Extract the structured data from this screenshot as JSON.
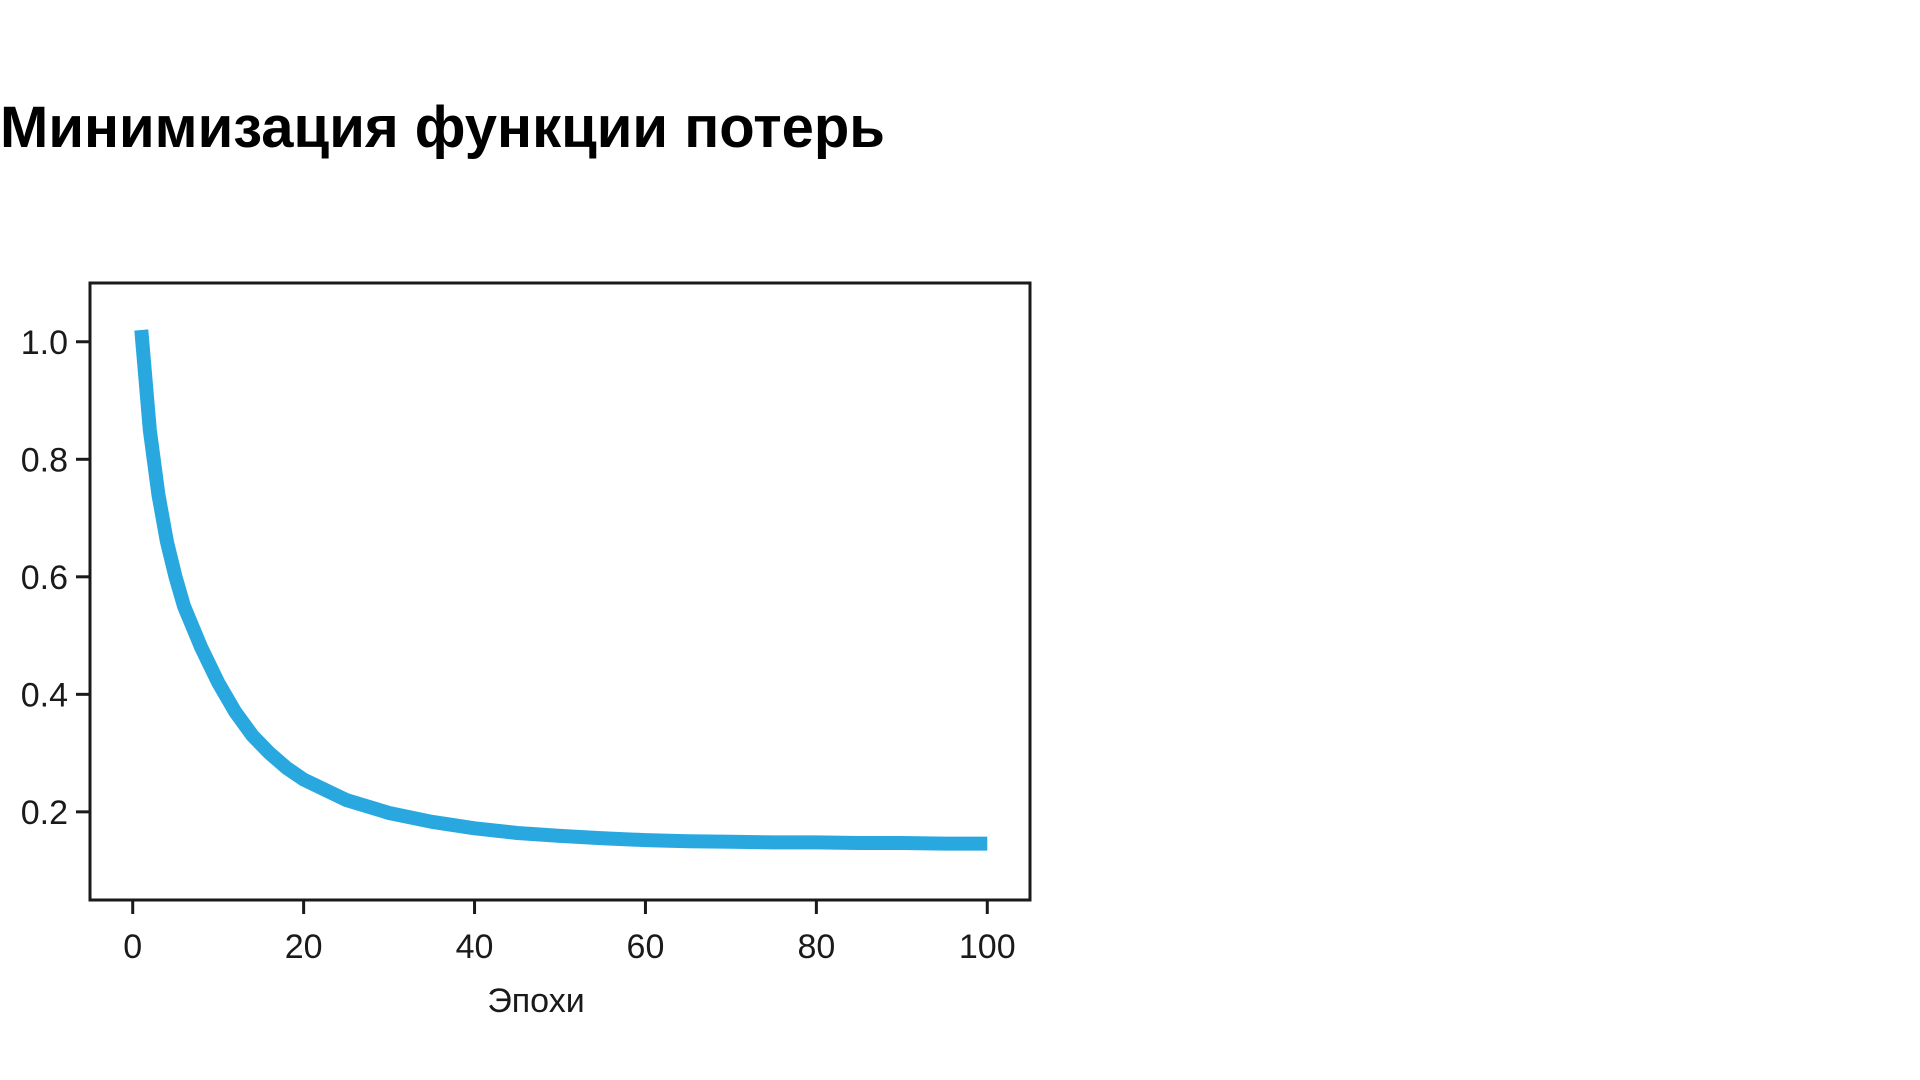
{
  "slide": {
    "title": "Минимизация функции потерь"
  },
  "colors": {
    "line": "#29a8e0",
    "axis": "#1a1a1a",
    "background": "#ffffff"
  },
  "chart_data": {
    "type": "line",
    "title": "",
    "xlabel": "Эпохи",
    "ylabel": "",
    "xlim": [
      -5,
      105
    ],
    "ylim": [
      0.05,
      1.1
    ],
    "xticks": [
      0,
      20,
      40,
      60,
      80,
      100
    ],
    "xtick_labels": [
      "0",
      "20",
      "40",
      "60",
      "80",
      "100"
    ],
    "yticks": [
      0.2,
      0.4,
      0.6,
      0.8,
      1.0
    ],
    "ytick_labels": [
      "0.2",
      "0.4",
      "0.6",
      "0.8",
      "1.0"
    ],
    "grid": false,
    "legend": "none",
    "series": [
      {
        "x": [
          1,
          2,
          3,
          4,
          5,
          6,
          8,
          10,
          12,
          14,
          16,
          18,
          20,
          25,
          30,
          35,
          40,
          45,
          50,
          55,
          60,
          65,
          70,
          75,
          80,
          85,
          90,
          95,
          100
        ],
        "y": [
          1.02,
          0.85,
          0.74,
          0.66,
          0.6,
          0.55,
          0.48,
          0.42,
          0.37,
          0.33,
          0.3,
          0.275,
          0.255,
          0.22,
          0.198,
          0.183,
          0.172,
          0.164,
          0.159,
          0.155,
          0.152,
          0.15,
          0.149,
          0.148,
          0.148,
          0.147,
          0.147,
          0.146,
          0.146
        ]
      }
    ]
  }
}
